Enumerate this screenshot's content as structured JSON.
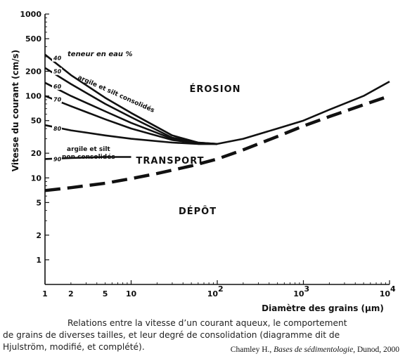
{
  "chart_data": {
    "type": "line",
    "xlabel": "Diamètre des grains (µm)",
    "ylabel": "Vitesse du courant (cm/s)",
    "x_scale": "log",
    "y_scale": "log",
    "xlim": [
      1,
      10000
    ],
    "ylim": [
      0.5,
      1000
    ],
    "x_ticks": [
      {
        "value": 1,
        "label": "1"
      },
      {
        "value": 2,
        "label": "2"
      },
      {
        "value": 5,
        "label": "5"
      },
      {
        "value": 10,
        "label": "10"
      },
      {
        "value": 100,
        "label": "10",
        "exp": "2"
      },
      {
        "value": 1000,
        "label": "10",
        "exp": "3"
      },
      {
        "value": 10000,
        "label": "10",
        "exp": "4"
      }
    ],
    "y_ticks": [
      {
        "value": 1,
        "label": "1"
      },
      {
        "value": 2,
        "label": "2"
      },
      {
        "value": 5,
        "label": "5"
      },
      {
        "value": 10,
        "label": "10"
      },
      {
        "value": 20,
        "label": "20"
      },
      {
        "value": 50,
        "label": "50"
      },
      {
        "value": 100,
        "label": "100"
      },
      {
        "value": 200,
        "label": "200"
      },
      {
        "value": 500,
        "label": "500"
      },
      {
        "value": 1000,
        "label": "1000"
      }
    ],
    "regions": [
      {
        "label": "ÉROSION",
        "x": 300,
        "y": 110
      },
      {
        "label": "TRANSPORT",
        "x": 60,
        "y": 19
      },
      {
        "label": "DÉPÔT",
        "x": 60,
        "y": 4.3
      }
    ],
    "annotations": {
      "water_content": "teneur en eau %",
      "consolidated": "argile et silt consolidés",
      "unconsolidated_line1": "argile et silt",
      "unconsolidated_line2": "non consolidés"
    },
    "series": [
      {
        "label": "40",
        "style": "solid",
        "points": [
          [
            1,
            320
          ],
          [
            2,
            180
          ],
          [
            5,
            95
          ],
          [
            10,
            62
          ],
          [
            30,
            33
          ],
          [
            60,
            27
          ],
          [
            100,
            26
          ]
        ]
      },
      {
        "label": "50",
        "style": "solid",
        "points": [
          [
            1,
            220
          ],
          [
            2,
            140
          ],
          [
            5,
            80
          ],
          [
            10,
            55
          ],
          [
            30,
            31
          ],
          [
            60,
            27
          ],
          [
            100,
            26
          ]
        ]
      },
      {
        "label": "60",
        "style": "solid",
        "points": [
          [
            1,
            145
          ],
          [
            2,
            100
          ],
          [
            5,
            65
          ],
          [
            10,
            47
          ],
          [
            30,
            30
          ],
          [
            60,
            26.5
          ],
          [
            100,
            26
          ]
        ]
      },
      {
        "label": "70",
        "style": "solid",
        "points": [
          [
            1,
            100
          ],
          [
            2,
            75
          ],
          [
            5,
            52
          ],
          [
            10,
            40
          ],
          [
            30,
            29
          ],
          [
            60,
            26.5
          ],
          [
            100,
            26
          ]
        ]
      },
      {
        "label": "80",
        "style": "solid",
        "points": [
          [
            1,
            44
          ],
          [
            2,
            38
          ],
          [
            5,
            33
          ],
          [
            10,
            30
          ],
          [
            30,
            27
          ],
          [
            60,
            26
          ],
          [
            100,
            26
          ]
        ]
      },
      {
        "label": "90",
        "style": "solid",
        "points": [
          [
            1,
            17
          ],
          [
            2,
            17.5
          ],
          [
            5,
            18
          ],
          [
            10,
            18
          ]
        ]
      },
      {
        "label": "",
        "style": "solid",
        "points": [
          [
            60,
            26
          ],
          [
            100,
            26
          ],
          [
            200,
            30
          ],
          [
            500,
            40
          ],
          [
            1000,
            50
          ],
          [
            2000,
            68
          ],
          [
            5000,
            100
          ],
          [
            10000,
            150
          ]
        ]
      },
      {
        "label": "",
        "style": "dashed",
        "points": [
          [
            1,
            7
          ],
          [
            2,
            7.6
          ],
          [
            5,
            8.6
          ],
          [
            10,
            9.8
          ],
          [
            20,
            11.3
          ],
          [
            50,
            14
          ],
          [
            100,
            17
          ],
          [
            200,
            22
          ],
          [
            500,
            32
          ],
          [
            1000,
            43
          ],
          [
            2000,
            56
          ],
          [
            5000,
            78
          ],
          [
            10000,
            100
          ]
        ]
      }
    ]
  },
  "caption": {
    "line1": "Relations entre la vitesse d’un courant aqueux, le comportement",
    "line2": "de grains de diverses tailles, et leur degré de consolidation (diagramme dit de",
    "line3": "Hjulström, modifié, et complété)."
  },
  "credit": {
    "author": "Chamley H., ",
    "title": "Bases de sédimentologie",
    "publisher": ", Dunod, 2000"
  }
}
